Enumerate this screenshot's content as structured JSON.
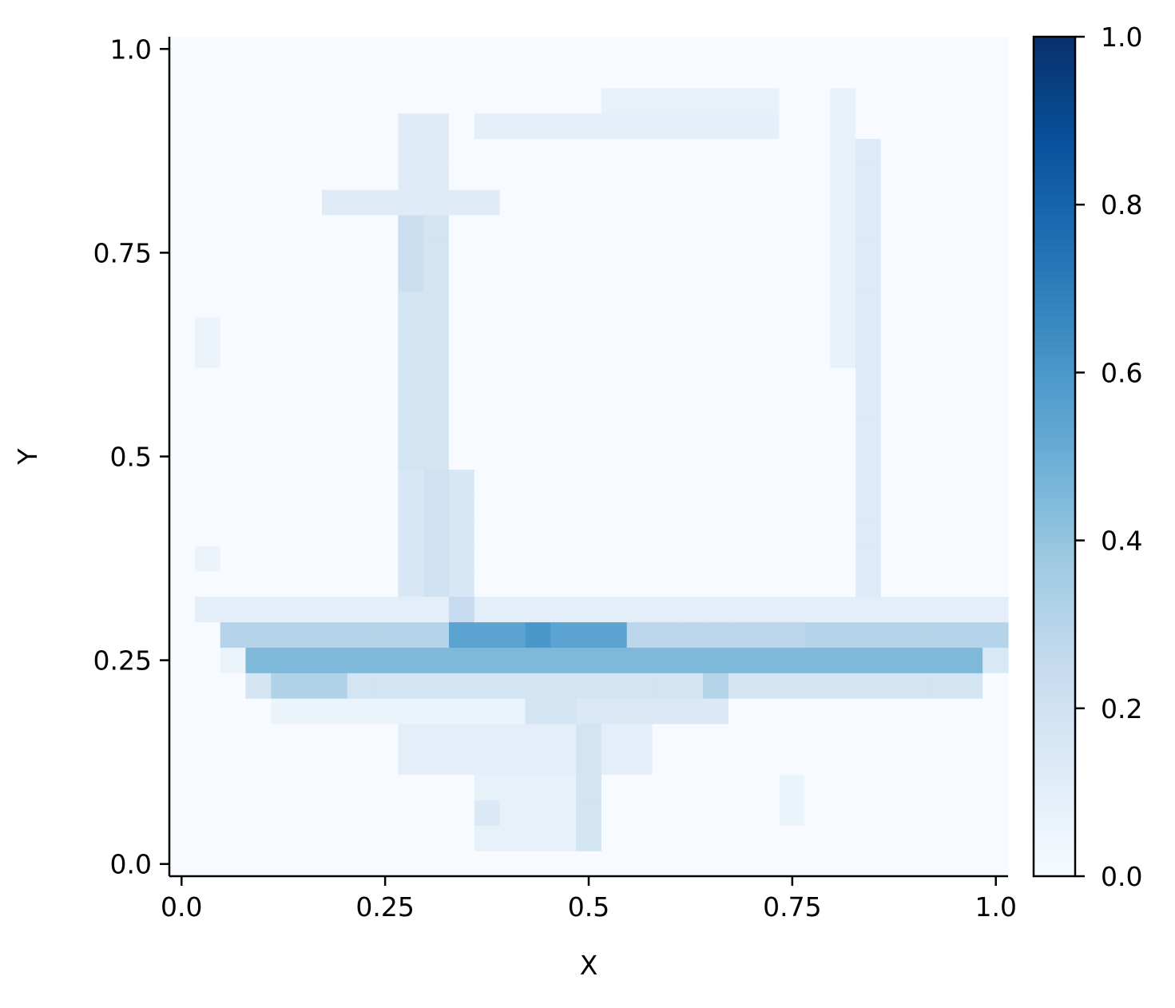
{
  "chart_data": {
    "type": "heatmap",
    "title": "",
    "xlabel": "X",
    "ylabel": "Y",
    "xlim": [
      -0.015,
      1.015
    ],
    "ylim": [
      -0.015,
      1.015
    ],
    "x_ticks": [
      0.0,
      0.25,
      0.5,
      0.75,
      1.0
    ],
    "x_tick_labels": [
      "0.0",
      "0.25",
      "0.5",
      "0.75",
      "1.0"
    ],
    "y_ticks": [
      0.0,
      0.25,
      0.5,
      0.75,
      1.0
    ],
    "y_tick_labels": [
      "0.0",
      "0.25",
      "0.5",
      "0.75",
      "1.0"
    ],
    "colormap": "Blues",
    "colorbar": {
      "range": [
        0.0,
        1.0
      ],
      "ticks": [
        0.0,
        0.2,
        0.4,
        0.6,
        0.8,
        1.0
      ],
      "tick_labels": [
        "0.0",
        "0.2",
        "0.4",
        "0.6",
        "0.8",
        "1.0"
      ]
    },
    "grid": false,
    "cells": {
      "x_range": [
        -0.015,
        1.015
      ],
      "y_range": [
        -0.015,
        1.015
      ],
      "ncols": 33,
      "nrows": 33,
      "background_value": 0.0,
      "regions": [
        {
          "x": [
            0.08,
            0.98
          ],
          "y": [
            0.2,
            0.23
          ],
          "value": 0.18
        },
        {
          "x": [
            0.11,
            0.21
          ],
          "y": [
            0.2,
            0.23
          ],
          "value": 0.32
        },
        {
          "x": [
            0.64,
            0.68
          ],
          "y": [
            0.2,
            0.23
          ],
          "value": 0.3
        },
        {
          "x": [
            0.05,
            0.98
          ],
          "y": [
            0.23,
            0.26
          ],
          "value": 0.45
        },
        {
          "x": [
            0.05,
            0.08
          ],
          "y": [
            0.23,
            0.26
          ],
          "value": 0.06
        },
        {
          "x": [
            0.98,
            1.015
          ],
          "y": [
            0.23,
            0.26
          ],
          "value": 0.15
        },
        {
          "x": [
            0.05,
            1.015
          ],
          "y": [
            0.26,
            0.3
          ],
          "value": 0.3
        },
        {
          "x": [
            0.33,
            0.54
          ],
          "y": [
            0.26,
            0.3
          ],
          "value": 0.55
        },
        {
          "x": [
            0.42,
            0.45
          ],
          "y": [
            0.26,
            0.3
          ],
          "value": 0.6
        },
        {
          "x": [
            0.54,
            0.75
          ],
          "y": [
            0.26,
            0.3
          ],
          "value": 0.28
        },
        {
          "x": [
            0.02,
            1.015
          ],
          "y": [
            0.3,
            0.33
          ],
          "value": 0.1
        },
        {
          "x": [
            0.33,
            0.36
          ],
          "y": [
            0.3,
            0.33
          ],
          "value": 0.25
        },
        {
          "x": [
            0.11,
            0.52
          ],
          "y": [
            0.17,
            0.2
          ],
          "value": 0.06
        },
        {
          "x": [
            0.42,
            0.48
          ],
          "y": [
            0.17,
            0.2
          ],
          "value": 0.18
        },
        {
          "x": [
            0.48,
            0.68
          ],
          "y": [
            0.17,
            0.2
          ],
          "value": 0.14
        },
        {
          "x": [
            0.27,
            0.36
          ],
          "y": [
            0.33,
            0.48
          ],
          "value": 0.16
        },
        {
          "x": [
            0.3,
            0.33
          ],
          "y": [
            0.33,
            0.48
          ],
          "value": 0.2
        },
        {
          "x": [
            0.27,
            0.33
          ],
          "y": [
            0.48,
            0.8
          ],
          "value": 0.18
        },
        {
          "x": [
            0.27,
            0.3
          ],
          "y": [
            0.7,
            0.8
          ],
          "value": 0.22
        },
        {
          "x": [
            0.27,
            0.33
          ],
          "y": [
            0.8,
            0.83
          ],
          "value": 0.2
        },
        {
          "x": [
            0.17,
            0.39
          ],
          "y": [
            0.8,
            0.83
          ],
          "value": 0.12
        },
        {
          "x": [
            0.27,
            0.33
          ],
          "y": [
            0.83,
            0.93
          ],
          "value": 0.12
        },
        {
          "x": [
            0.36,
            0.74
          ],
          "y": [
            0.89,
            0.92
          ],
          "value": 0.09
        },
        {
          "x": [
            0.52,
            0.74
          ],
          "y": [
            0.92,
            0.95
          ],
          "value": 0.08
        },
        {
          "x": [
            0.84,
            0.87
          ],
          "y": [
            0.33,
            0.89
          ],
          "value": 0.13
        },
        {
          "x": [
            0.81,
            0.84
          ],
          "y": [
            0.6,
            0.95
          ],
          "value": 0.08
        },
        {
          "x": [
            0.27,
            0.57
          ],
          "y": [
            0.12,
            0.17
          ],
          "value": 0.1
        },
        {
          "x": [
            0.48,
            0.51
          ],
          "y": [
            0.03,
            0.17
          ],
          "value": 0.18
        },
        {
          "x": [
            0.36,
            0.48
          ],
          "y": [
            0.03,
            0.12
          ],
          "value": 0.08
        },
        {
          "x": [
            0.36,
            0.39
          ],
          "y": [
            0.06,
            0.09
          ],
          "value": 0.14
        },
        {
          "x": [
            0.02,
            0.05
          ],
          "y": [
            0.37,
            0.4
          ],
          "value": 0.06
        },
        {
          "x": [
            0.02,
            0.05
          ],
          "y": [
            0.62,
            0.68
          ],
          "value": 0.06
        },
        {
          "x": [
            0.74,
            0.77
          ],
          "y": [
            0.06,
            0.12
          ],
          "value": 0.06
        }
      ]
    }
  }
}
